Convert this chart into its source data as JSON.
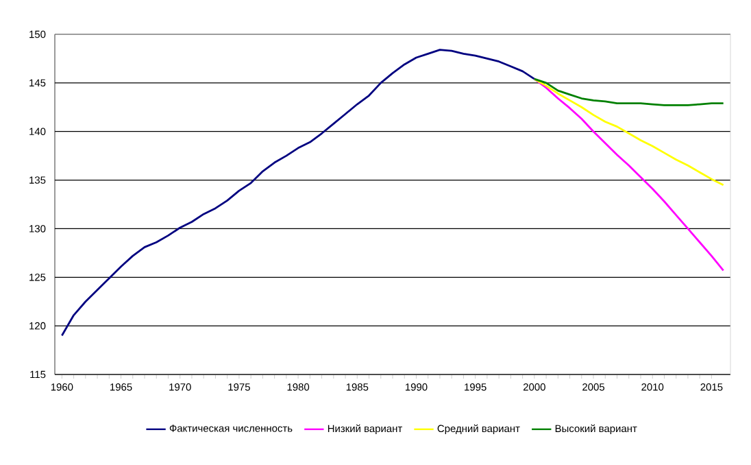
{
  "chart_data": {
    "type": "line",
    "xlim": [
      1959.4,
      2016.6
    ],
    "xticks": [
      1960,
      1965,
      1970,
      1975,
      1980,
      1985,
      1990,
      1995,
      2000,
      2005,
      2010,
      2015
    ],
    "ylim": [
      115,
      150
    ],
    "yticks": [
      115,
      120,
      125,
      130,
      135,
      140,
      145,
      150
    ],
    "grid": "y",
    "legend": "bottom",
    "marker": "none",
    "line_style": "solid",
    "series": [
      {
        "name": "Фактическая численность",
        "color": "#000080",
        "x": [
          1960,
          1961,
          1962,
          1963,
          1964,
          1965,
          1966,
          1967,
          1968,
          1969,
          1970,
          1971,
          1972,
          1973,
          1974,
          1975,
          1976,
          1977,
          1978,
          1979,
          1980,
          1981,
          1982,
          1983,
          1984,
          1985,
          1986,
          1987,
          1988,
          1989,
          1990,
          1991,
          1992,
          1993,
          1994,
          1995,
          1996,
          1997,
          1998,
          1999,
          2000
        ],
        "values": [
          119.0,
          121.1,
          122.5,
          123.7,
          124.9,
          126.1,
          127.2,
          128.1,
          128.6,
          129.3,
          130.1,
          130.7,
          131.5,
          132.1,
          132.9,
          133.9,
          134.7,
          135.9,
          136.8,
          137.5,
          138.3,
          138.9,
          139.8,
          140.8,
          141.8,
          142.8,
          143.7,
          145.0,
          146.0,
          146.9,
          147.6,
          148.0,
          148.4,
          148.3,
          148.0,
          147.8,
          147.5,
          147.2,
          146.7,
          146.2,
          145.4
        ]
      },
      {
        "name": "Низкий вариант",
        "color": "#ff00ff",
        "x": [
          2000,
          2001,
          2002,
          2003,
          2004,
          2005,
          2006,
          2007,
          2008,
          2009,
          2010,
          2011,
          2012,
          2013,
          2014,
          2015,
          2016
        ],
        "values": [
          145.4,
          144.5,
          143.4,
          142.4,
          141.3,
          140.0,
          138.8,
          137.6,
          136.5,
          135.3,
          134.1,
          132.8,
          131.4,
          130.0,
          128.6,
          127.2,
          125.7
        ]
      },
      {
        "name": "Средний вариант",
        "color": "#ffff00",
        "x": [
          2000,
          2001,
          2002,
          2003,
          2004,
          2005,
          2006,
          2007,
          2008,
          2009,
          2010,
          2011,
          2012,
          2013,
          2014,
          2015,
          2016
        ],
        "values": [
          145.4,
          144.7,
          143.9,
          143.2,
          142.5,
          141.7,
          141.0,
          140.5,
          139.8,
          139.1,
          138.5,
          137.8,
          137.1,
          136.5,
          135.8,
          135.1,
          134.5
        ]
      },
      {
        "name": "Высокий вариант",
        "color": "#008000",
        "x": [
          2000,
          2001,
          2002,
          2003,
          2004,
          2005,
          2006,
          2007,
          2008,
          2009,
          2010,
          2011,
          2012,
          2013,
          2014,
          2015,
          2016
        ],
        "values": [
          145.4,
          145.0,
          144.2,
          143.8,
          143.4,
          143.2,
          143.1,
          142.9,
          142.9,
          142.9,
          142.8,
          142.7,
          142.7,
          142.7,
          142.8,
          142.9,
          142.9
        ]
      }
    ]
  }
}
